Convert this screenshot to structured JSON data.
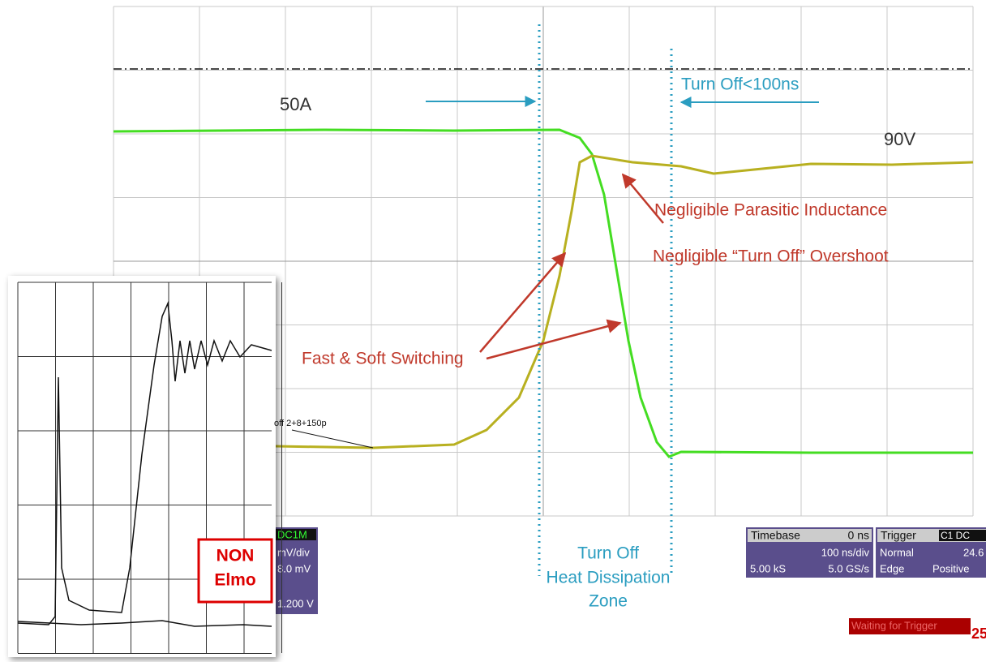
{
  "annotations": {
    "current": "50A",
    "voltage": "90V",
    "turn_off_time": "Turn Off<100ns",
    "inductance": "Negligible Parasitic Inductance",
    "overshoot": "Negligible “Turn Off” Overshoot",
    "switching": "Fast & Soft Switching",
    "zone": [
      "Turn Off",
      "Heat Dissipation",
      "Zone"
    ]
  },
  "inset": {
    "label": [
      "NON",
      "Elmo"
    ],
    "trace_note": "off  2+8+150p"
  },
  "channel_panel": {
    "tag": "DC1M",
    "scale": "mV/div",
    "offset": "8.0 mV",
    "level": "1.200 V"
  },
  "timebase": {
    "title": "Timebase",
    "delay": "0 ns",
    "per_div": "100 ns/div",
    "samples": "5.00 kS",
    "rate": "5.0 GS/s"
  },
  "trigger": {
    "title": "Trigger",
    "tag": "C1 DC",
    "mode": "Normal",
    "level": "24.6",
    "type": "Edge",
    "slope": "Positive"
  },
  "status": "Waiting for Trigger",
  "corner": "25"
}
